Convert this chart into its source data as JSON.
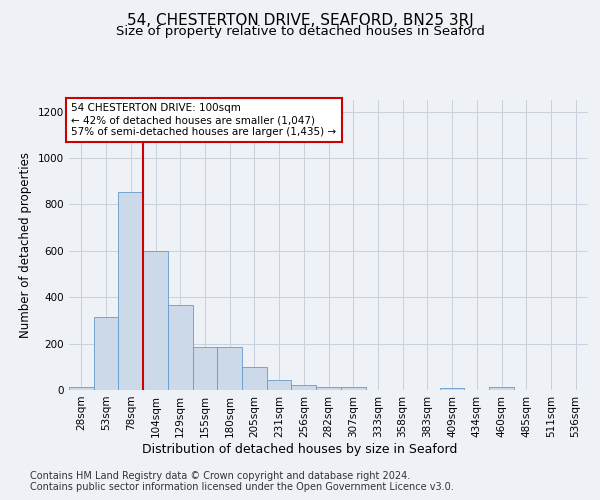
{
  "title": "54, CHESTERTON DRIVE, SEAFORD, BN25 3RJ",
  "subtitle": "Size of property relative to detached houses in Seaford",
  "xlabel": "Distribution of detached houses by size in Seaford",
  "ylabel": "Number of detached properties",
  "bar_labels": [
    "28sqm",
    "53sqm",
    "78sqm",
    "104sqm",
    "129sqm",
    "155sqm",
    "180sqm",
    "205sqm",
    "231sqm",
    "256sqm",
    "282sqm",
    "307sqm",
    "333sqm",
    "358sqm",
    "383sqm",
    "409sqm",
    "434sqm",
    "460sqm",
    "485sqm",
    "511sqm",
    "536sqm"
  ],
  "bar_values": [
    15,
    315,
    855,
    598,
    365,
    185,
    185,
    100,
    45,
    20,
    15,
    15,
    0,
    0,
    0,
    10,
    0,
    15,
    0,
    0,
    0
  ],
  "bar_color": "#ccd9e8",
  "bar_edgecolor": "#6699cc",
  "vline_x": 2.5,
  "vline_color": "#cc0000",
  "annotation_text": "54 CHESTERTON DRIVE: 100sqm\n← 42% of detached houses are smaller (1,047)\n57% of semi-detached houses are larger (1,435) →",
  "annotation_box_color": "#ffffff",
  "annotation_box_edgecolor": "#cc0000",
  "ylim": [
    0,
    1250
  ],
  "yticks": [
    0,
    200,
    400,
    600,
    800,
    1000,
    1200
  ],
  "background_color": "#eef2f7",
  "plot_bg_color": "#eef2f7",
  "footer_line1": "Contains HM Land Registry data © Crown copyright and database right 2024.",
  "footer_line2": "Contains public sector information licensed under the Open Government Licence v3.0.",
  "title_fontsize": 11,
  "subtitle_fontsize": 9.5,
  "xlabel_fontsize": 9,
  "ylabel_fontsize": 8.5,
  "tick_fontsize": 7.5,
  "annotation_fontsize": 7.5,
  "footer_fontsize": 7
}
